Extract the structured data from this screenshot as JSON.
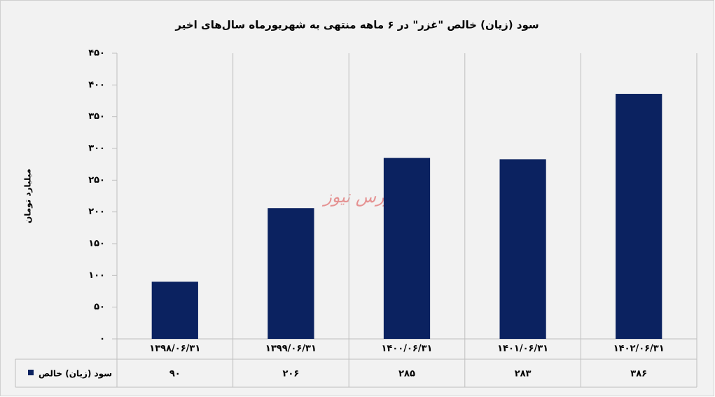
{
  "chart_data": {
    "type": "bar",
    "title": "سود (زیان) خالص \"غزر\" در ۶ ماهه منتهی به شهریورماه سال‌های اخیر",
    "y_label": "میلیارد تومان",
    "watermark": "بورس نیوز",
    "categories": [
      "۱۳۹۸/۰۶/۳۱",
      "۱۳۹۹/۰۶/۳۱",
      "۱۴۰۰/۰۶/۳۱",
      "۱۴۰۱/۰۶/۳۱",
      "۱۴۰۲/۰۶/۳۱"
    ],
    "series": [
      {
        "name": "سود (زیان) خالص",
        "color": "#0b2260",
        "values": [
          90,
          206,
          285,
          283,
          386
        ],
        "value_labels": [
          "۹۰",
          "۲۰۶",
          "۲۸۵",
          "۲۸۳",
          "۳۸۶"
        ]
      }
    ],
    "ylim": [
      0,
      450
    ],
    "yticks": [
      {
        "value": 0,
        "label": "۰"
      },
      {
        "value": 50,
        "label": "۵۰"
      },
      {
        "value": 100,
        "label": "۱۰۰"
      },
      {
        "value": 150,
        "label": "۱۵۰"
      },
      {
        "value": 200,
        "label": "۲۰۰"
      },
      {
        "value": 250,
        "label": "۲۵۰"
      },
      {
        "value": 300,
        "label": "۳۰۰"
      },
      {
        "value": 350,
        "label": "۳۵۰"
      },
      {
        "value": 400,
        "label": "۴۰۰"
      },
      {
        "value": 450,
        "label": "۴۵۰"
      }
    ],
    "grid": false
  }
}
